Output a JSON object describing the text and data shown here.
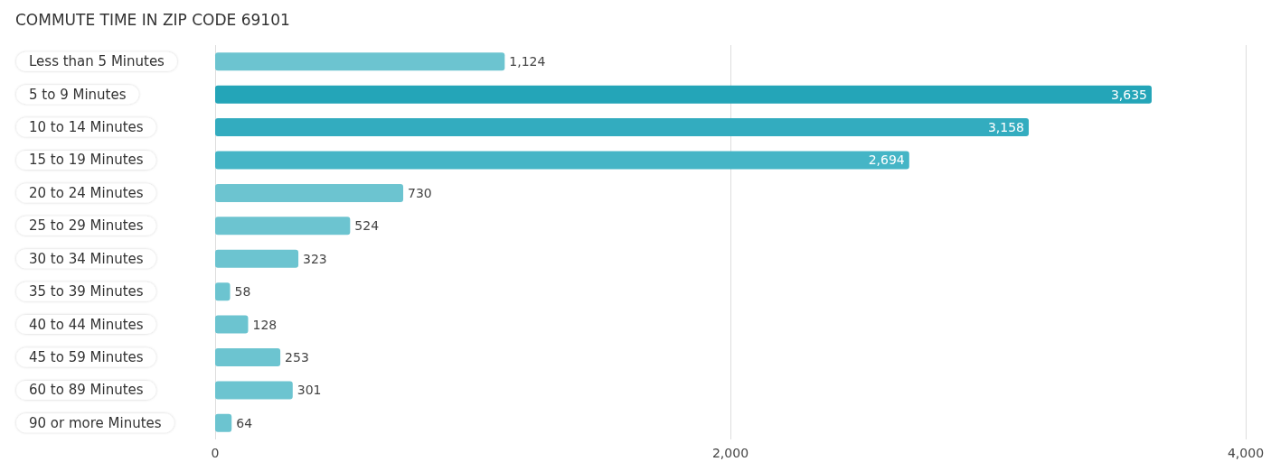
{
  "chart_data": {
    "type": "bar",
    "orientation": "horizontal",
    "title": "COMMUTE TIME IN ZIP CODE 69101",
    "categories": [
      "Less than 5 Minutes",
      "5 to 9 Minutes",
      "10 to 14 Minutes",
      "15 to 19 Minutes",
      "20 to 24 Minutes",
      "25 to 29 Minutes",
      "30 to 34 Minutes",
      "35 to 39 Minutes",
      "40 to 44 Minutes",
      "45 to 59 Minutes",
      "60 to 89 Minutes",
      "90 or more Minutes"
    ],
    "values": [
      1124,
      3635,
      3158,
      2694,
      730,
      524,
      323,
      58,
      128,
      253,
      301,
      64
    ],
    "value_labels": [
      "1,124",
      "3,635",
      "3,158",
      "2,694",
      "730",
      "524",
      "323",
      "58",
      "128",
      "253",
      "301",
      "64"
    ],
    "colors": [
      "#6cc4d0",
      "#24a5b8",
      "#33acbf",
      "#45b5c6",
      "#6cc4d0",
      "#6cc4d0",
      "#6cc4d0",
      "#6cc4d0",
      "#6cc4d0",
      "#6cc4d0",
      "#6cc4d0",
      "#6cc4d0"
    ],
    "xlim": [
      0,
      4000
    ],
    "xticks": [
      {
        "value": 0,
        "label": "0"
      },
      {
        "value": 2000,
        "label": "2,000"
      },
      {
        "value": 4000,
        "label": "4,000"
      }
    ],
    "grid": "x"
  }
}
